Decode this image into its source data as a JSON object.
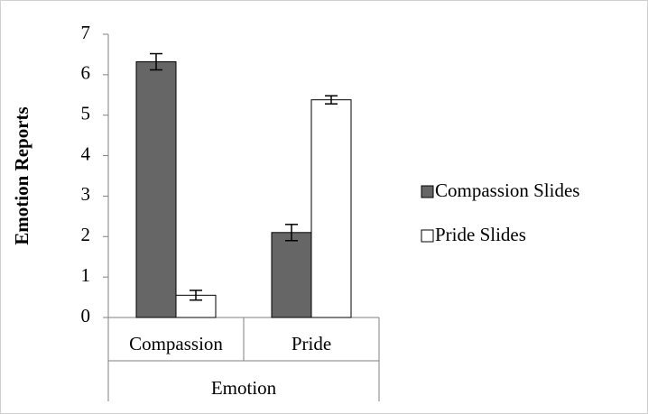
{
  "chart_data": {
    "type": "bar",
    "x_label": "Emotion",
    "y_label": "Emotion Reports",
    "categories": [
      "Compassion",
      "Pride"
    ],
    "series": [
      {
        "name": "Compassion Slides",
        "color": "#666666",
        "values": [
          6.32,
          2.1
        ],
        "errors": [
          0.2,
          0.2
        ]
      },
      {
        "name": "Pride Slides",
        "color": "#ffffff",
        "values": [
          0.55,
          5.38
        ],
        "errors": [
          0.12,
          0.1
        ]
      }
    ],
    "ylim": [
      0,
      7
    ],
    "yticks": [
      0,
      1,
      2,
      3,
      4,
      5,
      6,
      7
    ],
    "legend": "right"
  }
}
